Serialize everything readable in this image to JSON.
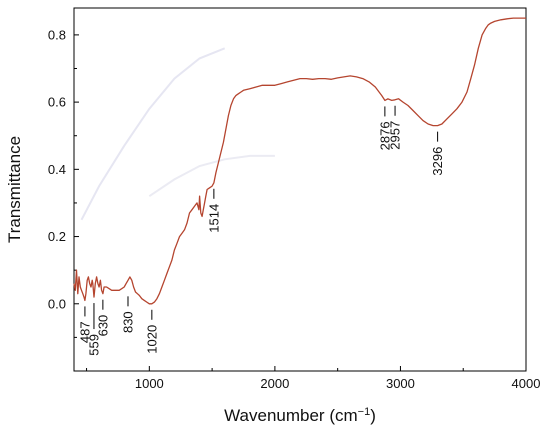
{
  "chart_data": {
    "type": "line",
    "title": "",
    "xlabel": "Wavenumber (cm",
    "xlabel_sup": "−1",
    "xlabel_close": ")",
    "ylabel": "Transmittance",
    "xlim": [
      400,
      4000
    ],
    "ylim": [
      -0.2,
      0.88
    ],
    "grid": false,
    "x_ticks": [
      "1000",
      "2000",
      "3000",
      "4000"
    ],
    "x_tick_values": [
      1000,
      2000,
      3000,
      4000
    ],
    "y_ticks": [
      "0.0",
      "0.2",
      "0.4",
      "0.6",
      "0.8"
    ],
    "y_tick_values": [
      0.0,
      0.2,
      0.4,
      0.6,
      0.8
    ],
    "series": [
      {
        "color": "#b5452f",
        "x": [
          400,
          410,
          420,
          430,
          440,
          450,
          460,
          470,
          480,
          487,
          495,
          505,
          515,
          525,
          535,
          545,
          550,
          559,
          570,
          580,
          590,
          600,
          610,
          620,
          630,
          640,
          650,
          660,
          680,
          700,
          720,
          740,
          760,
          780,
          800,
          815,
          830,
          845,
          860,
          875,
          890,
          905,
          920,
          940,
          960,
          980,
          1000,
          1020,
          1040,
          1060,
          1080,
          1100,
          1120,
          1140,
          1160,
          1180,
          1200,
          1220,
          1240,
          1260,
          1280,
          1300,
          1320,
          1340,
          1360,
          1380,
          1395,
          1400,
          1410,
          1420,
          1430,
          1440,
          1450,
          1460,
          1480,
          1500,
          1514,
          1530,
          1550,
          1570,
          1590,
          1610,
          1630,
          1650,
          1670,
          1690,
          1710,
          1730,
          1750,
          1800,
          1850,
          1900,
          1950,
          2000,
          2050,
          2100,
          2150,
          2200,
          2250,
          2300,
          2350,
          2400,
          2450,
          2500,
          2550,
          2600,
          2650,
          2700,
          2750,
          2800,
          2850,
          2876,
          2900,
          2930,
          2957,
          2985,
          3020,
          3060,
          3100,
          3140,
          3180,
          3220,
          3260,
          3296,
          3330,
          3370,
          3410,
          3450,
          3490,
          3530,
          3560,
          3590,
          3620,
          3650,
          3680,
          3700,
          3720,
          3750,
          3800,
          3850,
          3900,
          3950,
          4000
        ],
        "y": [
          0.06,
          0.04,
          0.1,
          0.03,
          0.08,
          0.05,
          0.04,
          0.03,
          0.02,
          0.01,
          0.03,
          0.07,
          0.08,
          0.06,
          0.05,
          0.07,
          0.06,
          0.02,
          0.06,
          0.08,
          0.06,
          0.05,
          0.07,
          0.04,
          0.03,
          0.05,
          0.05,
          0.05,
          0.045,
          0.04,
          0.04,
          0.04,
          0.04,
          0.045,
          0.05,
          0.06,
          0.07,
          0.08,
          0.07,
          0.05,
          0.035,
          0.03,
          0.025,
          0.015,
          0.01,
          0.005,
          0.0,
          0.0,
          0.005,
          0.015,
          0.03,
          0.05,
          0.07,
          0.09,
          0.11,
          0.13,
          0.16,
          0.18,
          0.2,
          0.21,
          0.22,
          0.24,
          0.27,
          0.28,
          0.29,
          0.3,
          0.28,
          0.32,
          0.27,
          0.26,
          0.28,
          0.3,
          0.32,
          0.34,
          0.345,
          0.35,
          0.36,
          0.39,
          0.42,
          0.45,
          0.48,
          0.52,
          0.56,
          0.59,
          0.61,
          0.62,
          0.625,
          0.63,
          0.635,
          0.64,
          0.645,
          0.65,
          0.65,
          0.65,
          0.655,
          0.66,
          0.665,
          0.67,
          0.67,
          0.668,
          0.67,
          0.67,
          0.668,
          0.672,
          0.675,
          0.678,
          0.675,
          0.67,
          0.66,
          0.645,
          0.62,
          0.605,
          0.61,
          0.605,
          0.607,
          0.61,
          0.6,
          0.59,
          0.575,
          0.56,
          0.545,
          0.535,
          0.53,
          0.53,
          0.535,
          0.55,
          0.565,
          0.58,
          0.6,
          0.63,
          0.67,
          0.71,
          0.76,
          0.8,
          0.82,
          0.83,
          0.835,
          0.84,
          0.845,
          0.848,
          0.85,
          0.85,
          0.85
        ]
      }
    ],
    "annotations": [
      {
        "label": "487",
        "x": 487,
        "y": 0.01,
        "side": "below"
      },
      {
        "label": "559",
        "x": 559,
        "y": 0.02,
        "side": "below_far"
      },
      {
        "label": "630",
        "x": 630,
        "y": 0.03,
        "side": "below"
      },
      {
        "label": "830",
        "x": 830,
        "y": 0.04,
        "side": "below"
      },
      {
        "label": "1020",
        "x": 1020,
        "y": 0.0,
        "side": "below"
      },
      {
        "label": "1514",
        "x": 1514,
        "y": 0.36,
        "side": "below"
      },
      {
        "label": "2876",
        "x": 2876,
        "y": 0.605,
        "side": "below"
      },
      {
        "label": "2957",
        "x": 2957,
        "y": 0.607,
        "side": "below"
      },
      {
        "label": "3296",
        "x": 3296,
        "y": 0.53,
        "side": "below"
      }
    ],
    "faint_lines": [
      {
        "x": [
          460,
          600,
          800,
          1000,
          1200,
          1400,
          1600
        ],
        "y": [
          0.25,
          0.35,
          0.47,
          0.58,
          0.67,
          0.73,
          0.76
        ],
        "color": "#e6e6f2"
      },
      {
        "x": [
          1000,
          1200,
          1400,
          1600,
          1800,
          2000
        ],
        "y": [
          0.32,
          0.37,
          0.41,
          0.43,
          0.44,
          0.44
        ],
        "color": "#ebebf3"
      }
    ]
  }
}
